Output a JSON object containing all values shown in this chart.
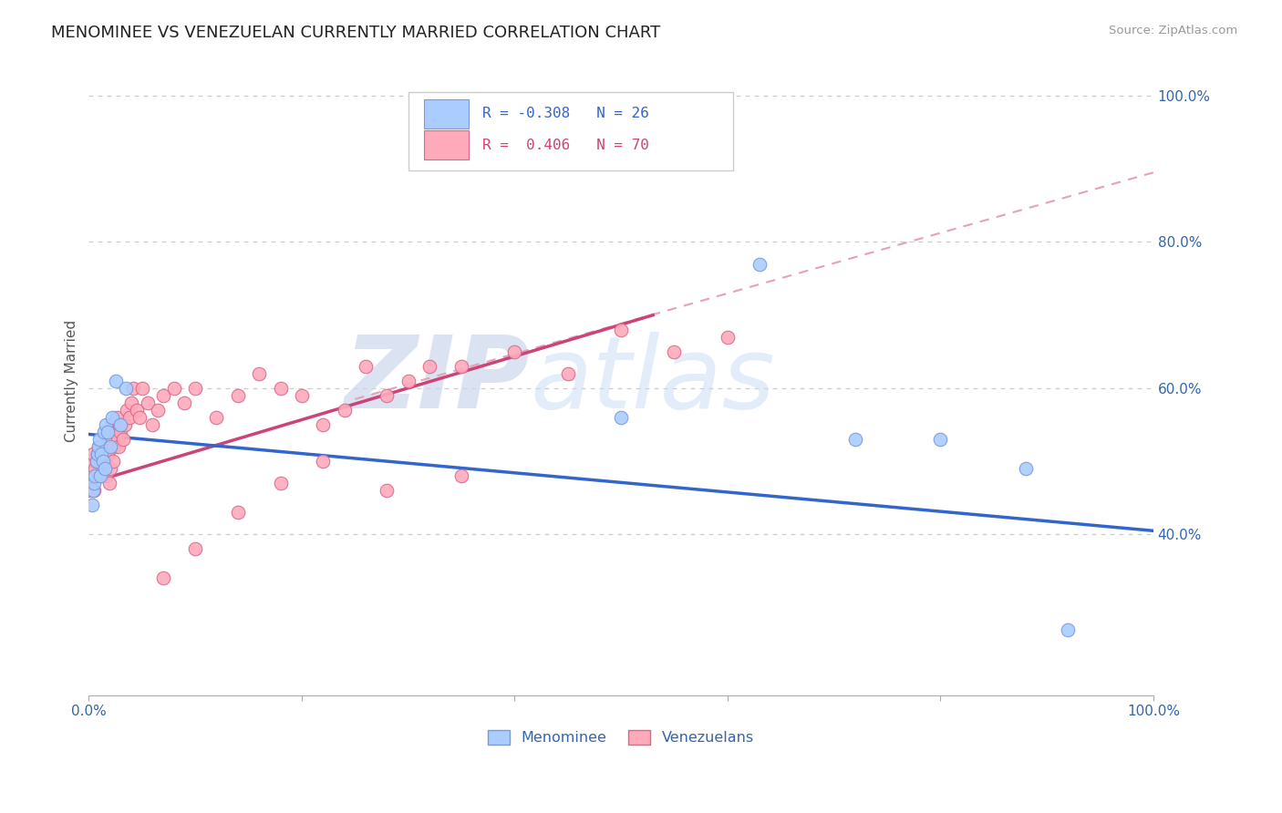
{
  "title": "MENOMINEE VS VENEZUELAN CURRENTLY MARRIED CORRELATION CHART",
  "source_text": "Source: ZipAtlas.com",
  "ylabel": "Currently Married",
  "xlim": [
    0,
    1
  ],
  "ylim": [
    0.18,
    1.04
  ],
  "x_ticks": [
    0.0,
    0.2,
    0.4,
    0.6,
    0.8,
    1.0
  ],
  "x_tick_labels": [
    "0.0%",
    "",
    "",
    "",
    "",
    "100.0%"
  ],
  "y_ticks": [
    0.4,
    0.6,
    0.8,
    1.0
  ],
  "y_tick_labels": [
    "40.0%",
    "60.0%",
    "80.0%",
    "100.0%"
  ],
  "menominee_x": [
    0.003,
    0.004,
    0.005,
    0.006,
    0.007,
    0.008,
    0.009,
    0.01,
    0.011,
    0.012,
    0.013,
    0.014,
    0.015,
    0.016,
    0.018,
    0.02,
    0.022,
    0.025,
    0.03,
    0.035,
    0.5,
    0.63,
    0.72,
    0.8,
    0.88,
    0.92
  ],
  "menominee_y": [
    0.44,
    0.46,
    0.47,
    0.48,
    0.5,
    0.51,
    0.52,
    0.53,
    0.48,
    0.51,
    0.5,
    0.54,
    0.49,
    0.55,
    0.54,
    0.52,
    0.56,
    0.61,
    0.55,
    0.6,
    0.56,
    0.77,
    0.53,
    0.53,
    0.49,
    0.27
  ],
  "venezuelan_x": [
    0.001,
    0.002,
    0.003,
    0.004,
    0.005,
    0.006,
    0.007,
    0.008,
    0.009,
    0.01,
    0.011,
    0.012,
    0.013,
    0.014,
    0.015,
    0.016,
    0.017,
    0.018,
    0.019,
    0.02,
    0.021,
    0.022,
    0.023,
    0.024,
    0.025,
    0.026,
    0.027,
    0.028,
    0.029,
    0.03,
    0.032,
    0.034,
    0.036,
    0.038,
    0.04,
    0.042,
    0.045,
    0.048,
    0.05,
    0.055,
    0.06,
    0.065,
    0.07,
    0.08,
    0.09,
    0.1,
    0.12,
    0.14,
    0.16,
    0.18,
    0.2,
    0.22,
    0.24,
    0.26,
    0.28,
    0.3,
    0.32,
    0.35,
    0.4,
    0.45,
    0.5,
    0.55,
    0.6,
    0.28,
    0.35,
    0.22,
    0.18,
    0.14,
    0.1,
    0.07
  ],
  "venezuelan_y": [
    0.46,
    0.48,
    0.5,
    0.51,
    0.46,
    0.49,
    0.5,
    0.51,
    0.52,
    0.48,
    0.5,
    0.52,
    0.49,
    0.51,
    0.5,
    0.48,
    0.52,
    0.51,
    0.47,
    0.49,
    0.53,
    0.55,
    0.5,
    0.52,
    0.54,
    0.56,
    0.53,
    0.52,
    0.55,
    0.54,
    0.53,
    0.55,
    0.57,
    0.56,
    0.58,
    0.6,
    0.57,
    0.56,
    0.6,
    0.58,
    0.55,
    0.57,
    0.59,
    0.6,
    0.58,
    0.6,
    0.56,
    0.59,
    0.62,
    0.6,
    0.59,
    0.55,
    0.57,
    0.63,
    0.59,
    0.61,
    0.63,
    0.63,
    0.65,
    0.62,
    0.68,
    0.65,
    0.67,
    0.46,
    0.48,
    0.5,
    0.47,
    0.43,
    0.38,
    0.34
  ],
  "blue_line_x": [
    0.0,
    1.0
  ],
  "blue_line_y": [
    0.537,
    0.405
  ],
  "pink_line_x": [
    0.0,
    0.53
  ],
  "pink_line_y": [
    0.47,
    0.7
  ],
  "dashed_line_x": [
    0.25,
    1.0
  ],
  "dashed_line_y": [
    0.585,
    0.895
  ],
  "watermark_zip": "ZIP",
  "watermark_atlas": "atlas",
  "watermark_color": "#dce8f5",
  "background_color": "#ffffff",
  "dot_color_menominee": "#aaccff",
  "dot_color_venezuelan": "#ffaabb",
  "dot_edge_menominee": "#7799dd",
  "dot_edge_venezuelan": "#dd6688",
  "line_color_blue": "#3366cc",
  "line_color_pink": "#cc4477",
  "dashed_color": "#e8a0b8",
  "grid_color": "#cccccc",
  "legend_r1_color": "#3366cc",
  "legend_r2_color": "#cc4477"
}
